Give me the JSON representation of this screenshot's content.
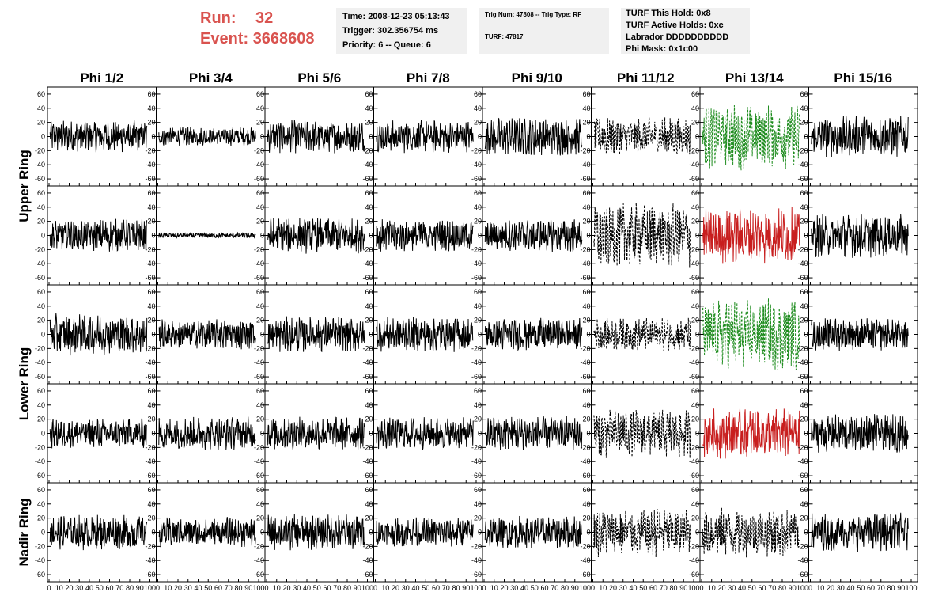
{
  "header": {
    "run_label": "Run:",
    "run_value": "32",
    "event_label": "Event:",
    "event_value": "3668608",
    "colors": {
      "run_text": "#d9534f",
      "info_bg": "#f0f0f0"
    }
  },
  "info_time": {
    "time": "Time: 2008-12-23 05:13:43",
    "trigger": "Trigger: 302.356754 ms",
    "priority": "Priority: 6 -- Queue: 6"
  },
  "info_trig": {
    "trig": "Trig Num: 47808 -- Trig Type: RF",
    "turf": "TURF: 47817"
  },
  "info_turf": {
    "this_hold": "TURF This Hold: 0x8",
    "active_holds": "TURF Active Holds: 0xc",
    "labrador": "Labrador DDDDDDDDDD",
    "phi_mask": "Phi Mask: 0x1c00"
  },
  "columns": [
    "Phi 1/2",
    "Phi 3/4",
    "Phi 5/6",
    "Phi 7/8",
    "Phi 9/10",
    "Phi 11/12",
    "Phi 13/14",
    "Phi 15/16"
  ],
  "ring_labels": [
    {
      "label": "Upper Ring",
      "rows": [
        0,
        1
      ]
    },
    {
      "label": "Lower Ring",
      "rows": [
        2,
        3
      ]
    },
    {
      "label": "Nadir Ring",
      "rows": [
        4,
        4
      ]
    }
  ],
  "chart_data": {
    "type": "line",
    "x_ticks": [
      0,
      10,
      20,
      30,
      40,
      50,
      60,
      70,
      80,
      90,
      100
    ],
    "y_ticks": [
      -60,
      -40,
      -20,
      0,
      20,
      40,
      60
    ],
    "xlim": [
      0,
      100
    ],
    "ylim": [
      -70,
      70
    ],
    "panel_styles": {
      "solid": {
        "color": "#000000",
        "dash": ""
      },
      "dashed": {
        "color": "#000000",
        "dash": "3,2"
      },
      "green": {
        "color": "#1e8c1e",
        "dash": "3,2"
      },
      "red": {
        "color": "#c81e1e",
        "dash": ""
      }
    },
    "panels": [
      [
        {
          "style": "solid",
          "amp": 12
        },
        {
          "style": "solid",
          "amp": 7
        },
        {
          "style": "solid",
          "amp": 12
        },
        {
          "style": "solid",
          "amp": 12
        },
        {
          "style": "solid",
          "amp": 14
        },
        {
          "style": "dashed",
          "amp": 14
        },
        {
          "style": "green",
          "amp": 24
        },
        {
          "style": "solid",
          "amp": 15
        }
      ],
      [
        {
          "style": "solid",
          "amp": 12
        },
        {
          "style": "solid",
          "amp": 2
        },
        {
          "style": "solid",
          "amp": 13
        },
        {
          "style": "solid",
          "amp": 12
        },
        {
          "style": "solid",
          "amp": 12
        },
        {
          "style": "dashed",
          "amp": 24
        },
        {
          "style": "red",
          "amp": 20
        },
        {
          "style": "solid",
          "amp": 16
        }
      ],
      [
        {
          "style": "solid",
          "amp": 15
        },
        {
          "style": "solid",
          "amp": 11
        },
        {
          "style": "solid",
          "amp": 13
        },
        {
          "style": "solid",
          "amp": 13
        },
        {
          "style": "solid",
          "amp": 12
        },
        {
          "style": "dashed",
          "amp": 12
        },
        {
          "style": "green",
          "amp": 26
        },
        {
          "style": "solid",
          "amp": 12
        }
      ],
      [
        {
          "style": "solid",
          "amp": 11
        },
        {
          "style": "solid",
          "amp": 12
        },
        {
          "style": "solid",
          "amp": 12
        },
        {
          "style": "solid",
          "amp": 12
        },
        {
          "style": "solid",
          "amp": 13
        },
        {
          "style": "dashed",
          "amp": 18
        },
        {
          "style": "red",
          "amp": 18
        },
        {
          "style": "solid",
          "amp": 14
        }
      ],
      [
        {
          "style": "solid",
          "amp": 13
        },
        {
          "style": "solid",
          "amp": 11
        },
        {
          "style": "solid",
          "amp": 13
        },
        {
          "style": "solid",
          "amp": 11
        },
        {
          "style": "solid",
          "amp": 12
        },
        {
          "style": "dashed",
          "amp": 18
        },
        {
          "style": "dashed",
          "amp": 18
        },
        {
          "style": "solid",
          "amp": 14
        }
      ]
    ]
  }
}
